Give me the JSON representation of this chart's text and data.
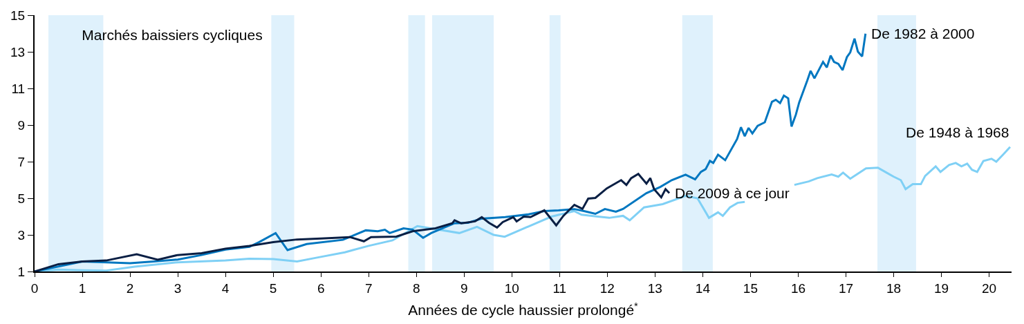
{
  "chart_data": {
    "type": "line",
    "xlabel": "Années de cycle haussier prolongé$^{*}$",
    "xlim": [
      0,
      20.47
    ],
    "xticks": [
      0,
      1,
      2,
      3,
      4,
      5,
      6,
      7,
      8,
      9,
      10,
      11,
      12,
      13,
      14,
      15,
      16,
      17,
      18,
      19,
      20
    ],
    "ylim": [
      1,
      15
    ],
    "yticks": [
      1,
      3,
      5,
      7,
      9,
      11,
      13,
      15
    ],
    "grid": false,
    "legend": "top left",
    "bands": [
      {
        "axis": "x",
        "from": 0.29,
        "to": 1.44,
        "label": "Marchés baissiers cycliques",
        "color": "#dff1fc"
      },
      {
        "axis": "x",
        "from": 4.96,
        "to": 5.44,
        "color": "#dff1fc"
      },
      {
        "axis": "x",
        "from": 7.83,
        "to": 8.18,
        "color": "#dff1fc"
      },
      {
        "axis": "x",
        "from": 8.33,
        "to": 9.62,
        "color": "#dff1fc"
      },
      {
        "axis": "x",
        "from": 10.79,
        "to": 11.02,
        "color": "#dff1fc"
      },
      {
        "axis": "x",
        "from": 13.57,
        "to": 14.21,
        "color": "#dff1fc"
      },
      {
        "axis": "x",
        "from": 17.66,
        "to": 18.47,
        "color": "#dff1fc"
      }
    ],
    "series": [
      {
        "name": "De 1948 à 1968",
        "color": "#7fd0f5",
        "x": [
          0,
          0.5,
          1,
          1.5,
          2.1,
          3,
          4,
          4.5,
          5,
          5.5,
          5.9,
          6.5,
          7,
          7.5,
          8.02,
          8.9,
          9.27,
          9.62,
          9.85,
          10.83,
          11.31,
          11.46,
          11.8,
          12.04,
          12.33,
          12.47,
          12.77,
          13.16,
          13.64,
          13.89,
          14.13,
          14.32,
          14.42,
          14.57,
          14.73,
          14.88,
          15.4,
          15.92,
          16.22,
          16.4,
          16.7,
          16.84,
          16.94,
          17.09,
          17.42,
          17.67,
          17.85,
          18.0,
          18.15,
          18.25,
          18.4,
          18.57,
          18.66,
          18.88,
          18.98,
          19.16,
          19.3,
          19.42,
          19.54,
          19.64,
          19.75,
          19.88,
          20.05,
          20.15,
          20.29,
          20.44
        ],
        "values": [
          1,
          1.1,
          1.07,
          1.05,
          1.26,
          1.5,
          1.6,
          1.7,
          1.68,
          1.55,
          1.75,
          2.05,
          2.4,
          2.7,
          3.48,
          3.1,
          3.44,
          3.0,
          2.9,
          4.0,
          4.3,
          4.1,
          4.0,
          3.93,
          4.04,
          3.8,
          4.5,
          4.68,
          5.13,
          5.0,
          3.93,
          4.23,
          4.04,
          4.5,
          4.75,
          4.8,
          null,
          5.73,
          5.92,
          6.1,
          6.3,
          6.18,
          6.4,
          6.07,
          6.63,
          6.67,
          6.4,
          6.18,
          5.99,
          5.5,
          5.77,
          5.77,
          6.22,
          6.74,
          6.44,
          6.82,
          6.93,
          6.74,
          6.89,
          6.56,
          6.44,
          7.04,
          7.16,
          7.0,
          7.38,
          7.8
        ]
      },
      {
        "name": "De 1982 à 2000",
        "color": "#0077c0",
        "x": [
          0,
          1,
          2,
          2.5,
          3,
          3.5,
          4,
          4.5,
          4.7,
          5.05,
          5.3,
          5.7,
          6.46,
          6.94,
          7.19,
          7.34,
          7.44,
          7.73,
          7.92,
          8.14,
          8.31,
          8.79,
          9.08,
          9.37,
          9.86,
          10.35,
          10.68,
          10.98,
          11.31,
          11.51,
          11.75,
          11.95,
          12.18,
          12.33,
          12.82,
          13.11,
          13.35,
          13.64,
          13.84,
          13.96,
          14.06,
          14.15,
          14.22,
          14.32,
          14.47,
          14.72,
          14.8,
          14.88,
          14.96,
          15.04,
          15.15,
          15.3,
          15.45,
          15.53,
          15.62,
          15.7,
          15.79,
          15.86,
          15.95,
          16.02,
          16.19,
          16.26,
          16.34,
          16.52,
          16.6,
          16.68,
          16.75,
          16.84,
          16.93,
          17.02,
          17.09,
          17.18,
          17.25,
          17.34,
          17.41
        ],
        "values": [
          1,
          1.55,
          1.45,
          1.55,
          1.65,
          1.9,
          2.2,
          2.35,
          2.6,
          3.1,
          2.17,
          2.5,
          2.73,
          3.25,
          3.2,
          3.28,
          3.1,
          3.36,
          3.29,
          2.84,
          3.1,
          3.63,
          3.66,
          3.89,
          3.97,
          4.12,
          4.3,
          4.34,
          4.41,
          4.3,
          4.15,
          4.41,
          4.27,
          4.42,
          5.28,
          5.62,
          5.99,
          6.29,
          6.03,
          6.44,
          6.59,
          7.04,
          6.93,
          7.38,
          7.08,
          8.24,
          8.88,
          8.39,
          8.84,
          8.54,
          8.96,
          9.15,
          10.27,
          10.38,
          10.2,
          10.61,
          10.46,
          8.92,
          9.56,
          10.23,
          11.43,
          11.96,
          11.55,
          12.45,
          12.15,
          12.79,
          12.45,
          12.34,
          12.0,
          12.71,
          12.97,
          13.72,
          13.01,
          12.75,
          13.99
        ]
      },
      {
        "name": "De 2009 à ce jour",
        "color": "#0a1f44",
        "x": [
          0,
          0.5,
          1,
          1.5,
          2.14,
          2.58,
          3,
          3.5,
          4,
          4.5,
          5,
          5.5,
          6,
          6.61,
          6.9,
          7.05,
          7.58,
          7.92,
          8.4,
          8.75,
          8.8,
          8.94,
          9.23,
          9.37,
          9.52,
          9.69,
          9.81,
          10.03,
          10.1,
          10.25,
          10.39,
          10.68,
          10.93,
          11.08,
          11.31,
          11.48,
          11.6,
          11.75,
          11.99,
          12.29,
          12.4,
          12.5,
          12.65,
          12.82,
          12.9,
          12.98,
          13.13,
          13.22,
          13.3
        ],
        "values": [
          1,
          1.4,
          1.55,
          1.6,
          1.94,
          1.64,
          1.9,
          2.0,
          2.25,
          2.4,
          2.6,
          2.75,
          2.8,
          2.88,
          2.65,
          2.88,
          2.91,
          3.2,
          3.36,
          3.63,
          3.8,
          3.63,
          3.74,
          3.97,
          3.66,
          3.4,
          3.7,
          3.97,
          3.74,
          4.0,
          3.97,
          4.34,
          3.52,
          4.04,
          4.64,
          4.42,
          4.98,
          5.02,
          5.54,
          5.99,
          5.73,
          6.1,
          6.33,
          5.8,
          6.1,
          5.5,
          5.05,
          5.5,
          5.28
        ]
      }
    ]
  }
}
